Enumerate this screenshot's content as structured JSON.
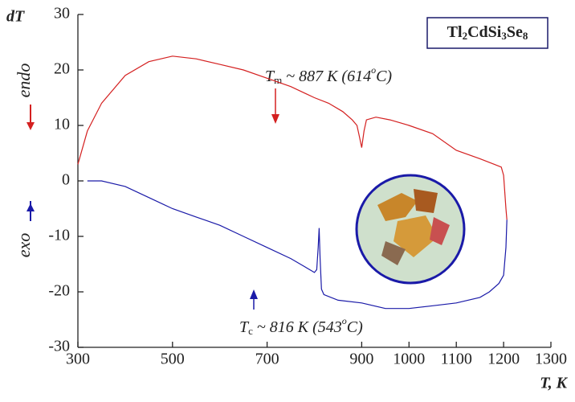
{
  "chart_data": {
    "type": "line",
    "y_label": "dT",
    "x_label": "T, K",
    "formula": [
      {
        "text": "Tl"
      },
      {
        "text": "2",
        "sub": true
      },
      {
        "text": "CdSi"
      },
      {
        "text": "3",
        "sub": true
      },
      {
        "text": "Se"
      },
      {
        "text": "8",
        "sub": true
      }
    ],
    "side_labels": {
      "top": "endo",
      "bottom": "exo"
    },
    "annotations": [
      {
        "symbol": "T",
        "subscript": "m",
        "text": "~ 887 K (614",
        "superscript": "o",
        "end": "C)"
      },
      {
        "symbol": "T",
        "subscript": "c",
        "text": "~ 816 K (543",
        "superscript": "o",
        "end": "C)"
      }
    ],
    "xlim": [
      300,
      1300
    ],
    "xticks": [
      300,
      500,
      700,
      900,
      1000,
      1100,
      1200,
      1300
    ],
    "ylim": [
      -30,
      30
    ],
    "yticks": [
      -30,
      -20,
      -10,
      0,
      10,
      20,
      30
    ],
    "series": [
      {
        "color": "#d42020",
        "x": [
          300,
          320,
          350,
          400,
          450,
          500,
          550,
          600,
          650,
          700,
          750,
          800,
          830,
          860,
          880,
          890,
          895,
          900,
          905,
          910,
          930,
          960,
          1000,
          1050,
          1100,
          1150,
          1180,
          1195,
          1200,
          1205,
          1207
        ],
        "values": [
          3,
          9,
          14,
          19,
          21.5,
          22.5,
          22,
          21,
          20,
          18.5,
          17,
          15,
          14,
          12.5,
          11,
          10,
          8,
          6,
          9,
          11,
          11.5,
          11,
          10,
          8.5,
          5.5,
          4,
          3,
          2.5,
          1,
          -5,
          -7
        ]
      },
      {
        "color": "#1a1aa8",
        "x": [
          1207,
          1205,
          1200,
          1190,
          1170,
          1150,
          1100,
          1050,
          1000,
          950,
          900,
          850,
          820,
          815,
          812,
          810,
          808,
          805,
          800,
          780,
          750,
          700,
          650,
          600,
          550,
          500,
          450,
          400,
          350,
          320
        ],
        "values": [
          -7,
          -12,
          -17,
          -18.5,
          -20,
          -21,
          -22,
          -22.5,
          -23,
          -23,
          -22,
          -21.5,
          -20.5,
          -19.5,
          -14,
          -8.5,
          -12,
          -16,
          -16.5,
          -15.5,
          -14,
          -12,
          -10,
          -8,
          -6.5,
          -5,
          -3,
          -1,
          0,
          0
        ]
      }
    ]
  }
}
